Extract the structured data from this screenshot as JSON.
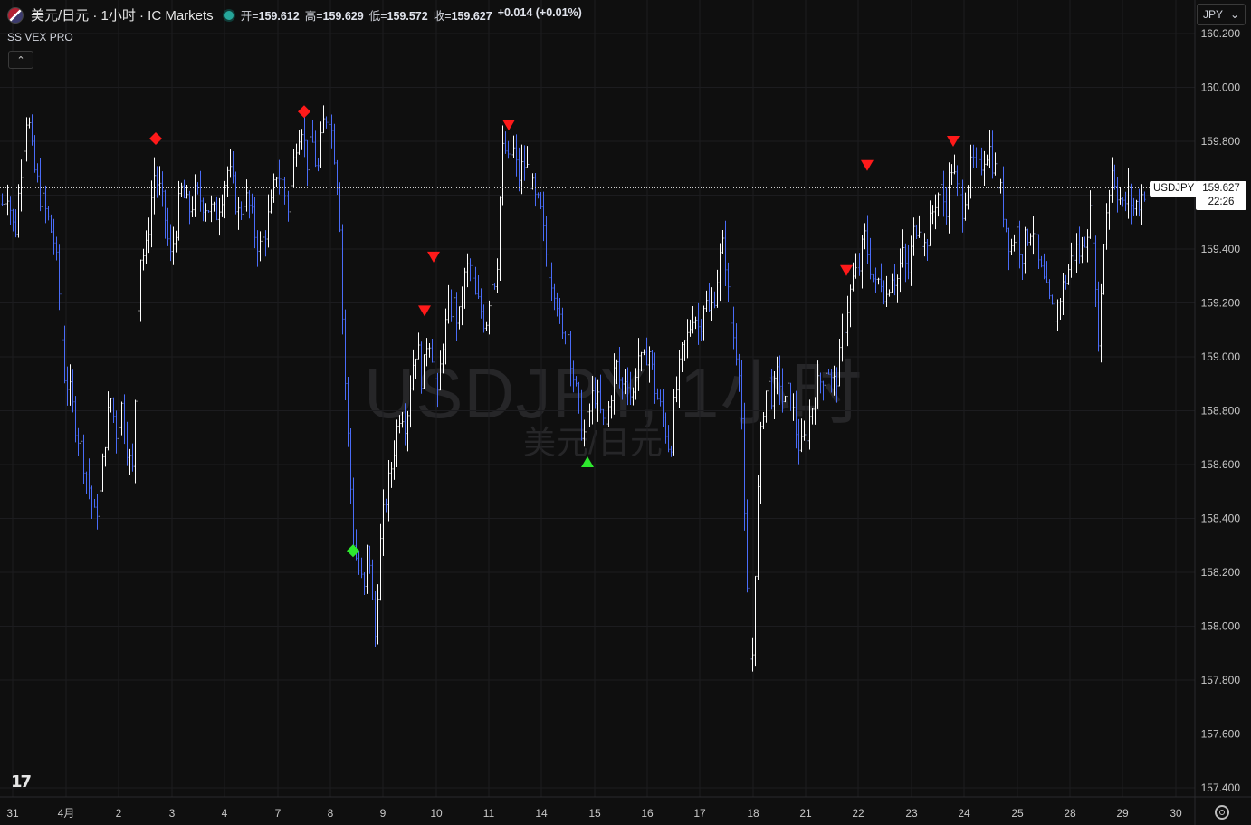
{
  "header": {
    "symbol_title": "美元/日元 · 1小时 · IC Markets",
    "open_label": "开=",
    "open": "159.612",
    "high_label": "高=",
    "high": "159.629",
    "low_label": "低=",
    "low": "159.572",
    "close_label": "收=",
    "close": "159.627",
    "change": "+0.014 (+0.01%)",
    "status_color": "#26a69a"
  },
  "indicator": {
    "name": "SS VEX PRO"
  },
  "currency_select": {
    "value": "JPY"
  },
  "watermark": {
    "line1": "USDJPY, 1小时",
    "line2": "美元/日元"
  },
  "last_price": {
    "symbol": "USDJPY",
    "price": "159.627",
    "countdown": "22:26"
  },
  "chart_data": {
    "type": "ohlc",
    "x_tick_labels": [
      "31",
      "4月",
      "2",
      "3",
      "4",
      "7",
      "8",
      "9",
      "10",
      "11",
      "14",
      "15",
      "16",
      "17",
      "18",
      "21",
      "22",
      "23",
      "24",
      "25",
      "28",
      "29",
      "30"
    ],
    "y_ticks": [
      "160.200",
      "160.000",
      "159.800",
      "159.600",
      "159.400",
      "159.200",
      "159.000",
      "158.800",
      "158.600",
      "158.400",
      "158.200",
      "158.000",
      "157.800",
      "157.600",
      "157.400"
    ],
    "ylim": [
      157.4,
      160.2
    ],
    "last_price": 159.627,
    "grid": true,
    "up_color": "#ffffff",
    "down_color": "#4a6cf7",
    "bar_count": 421,
    "anchors": [
      [
        0,
        159.55
      ],
      [
        8,
        159.62
      ],
      [
        16,
        159.44
      ],
      [
        22,
        159.68
      ],
      [
        30,
        159.92
      ],
      [
        36,
        159.72
      ],
      [
        44,
        159.6
      ],
      [
        52,
        159.52
      ],
      [
        60,
        159.42
      ],
      [
        66,
        159.2
      ],
      [
        70,
        158.95
      ],
      [
        76,
        158.88
      ],
      [
        84,
        158.74
      ],
      [
        92,
        158.62
      ],
      [
        98,
        158.52
      ],
      [
        104,
        158.4
      ],
      [
        110,
        158.48
      ],
      [
        116,
        158.7
      ],
      [
        122,
        158.85
      ],
      [
        128,
        158.72
      ],
      [
        134,
        158.82
      ],
      [
        140,
        158.68
      ],
      [
        146,
        158.55
      ],
      [
        150,
        158.92
      ],
      [
        152,
        159.2
      ],
      [
        156,
        159.42
      ],
      [
        160,
        159.35
      ],
      [
        166,
        159.55
      ],
      [
        170,
        159.68
      ],
      [
        176,
        159.62
      ],
      [
        182,
        159.52
      ],
      [
        188,
        159.36
      ],
      [
        194,
        159.48
      ],
      [
        200,
        159.62
      ],
      [
        208,
        159.54
      ],
      [
        216,
        159.6
      ],
      [
        224,
        159.58
      ],
      [
        232,
        159.55
      ],
      [
        238,
        159.52
      ],
      [
        246,
        159.62
      ],
      [
        252,
        159.7
      ],
      [
        258,
        159.62
      ],
      [
        264,
        159.52
      ],
      [
        270,
        159.6
      ],
      [
        276,
        159.55
      ],
      [
        282,
        159.45
      ],
      [
        288,
        159.4
      ],
      [
        294,
        159.48
      ],
      [
        300,
        159.56
      ],
      [
        306,
        159.7
      ],
      [
        312,
        159.64
      ],
      [
        318,
        159.55
      ],
      [
        326,
        159.8
      ],
      [
        332,
        159.88
      ],
      [
        338,
        159.72
      ],
      [
        344,
        159.8
      ],
      [
        350,
        159.68
      ],
      [
        356,
        159.86
      ],
      [
        362,
        159.92
      ],
      [
        368,
        159.78
      ],
      [
        374,
        159.58
      ],
      [
        378,
        159.1
      ],
      [
        382,
        158.8
      ],
      [
        386,
        158.55
      ],
      [
        390,
        158.3
      ],
      [
        396,
        158.2
      ],
      [
        402,
        158.12
      ],
      [
        406,
        158.35
      ],
      [
        410,
        158.1
      ],
      [
        414,
        157.95
      ],
      [
        418,
        158.25
      ],
      [
        424,
        158.45
      ],
      [
        430,
        158.55
      ],
      [
        436,
        158.7
      ],
      [
        442,
        158.82
      ],
      [
        448,
        158.75
      ],
      [
        454,
        158.95
      ],
      [
        460,
        159.05
      ],
      [
        466,
        158.9
      ],
      [
        472,
        159.1
      ],
      [
        478,
        159.0
      ],
      [
        482,
        158.8
      ],
      [
        488,
        159.05
      ],
      [
        494,
        159.15
      ],
      [
        500,
        159.2
      ],
      [
        506,
        159.12
      ],
      [
        512,
        159.28
      ],
      [
        518,
        159.35
      ],
      [
        524,
        159.22
      ],
      [
        530,
        159.18
      ],
      [
        536,
        159.12
      ],
      [
        542,
        159.28
      ],
      [
        548,
        159.3
      ],
      [
        552,
        159.6
      ],
      [
        556,
        159.82
      ],
      [
        560,
        159.7
      ],
      [
        566,
        159.78
      ],
      [
        572,
        159.66
      ],
      [
        578,
        159.72
      ],
      [
        584,
        159.68
      ],
      [
        590,
        159.58
      ],
      [
        596,
        159.55
      ],
      [
        602,
        159.4
      ],
      [
        608,
        159.3
      ],
      [
        614,
        159.25
      ],
      [
        620,
        159.05
      ],
      [
        626,
        159.12
      ],
      [
        632,
        158.95
      ],
      [
        638,
        158.82
      ],
      [
        644,
        158.7
      ],
      [
        650,
        158.78
      ],
      [
        656,
        158.88
      ],
      [
        662,
        158.8
      ],
      [
        668,
        158.72
      ],
      [
        674,
        158.85
      ],
      [
        680,
        158.98
      ],
      [
        686,
        158.88
      ],
      [
        692,
        158.95
      ],
      [
        698,
        158.82
      ],
      [
        704,
        159.02
      ],
      [
        710,
        158.95
      ],
      [
        716,
        159.05
      ],
      [
        722,
        158.9
      ],
      [
        728,
        158.82
      ],
      [
        734,
        158.75
      ],
      [
        740,
        158.65
      ],
      [
        744,
        158.8
      ],
      [
        748,
        158.9
      ],
      [
        754,
        159.02
      ],
      [
        760,
        159.08
      ],
      [
        766,
        159.18
      ],
      [
        772,
        159.1
      ],
      [
        778,
        159.22
      ],
      [
        784,
        159.15
      ],
      [
        790,
        159.25
      ],
      [
        796,
        159.38
      ],
      [
        800,
        159.42
      ],
      [
        806,
        159.15
      ],
      [
        812,
        159.05
      ],
      [
        818,
        158.95
      ],
      [
        822,
        158.4
      ],
      [
        826,
        158.05
      ],
      [
        830,
        157.75
      ],
      [
        834,
        158.2
      ],
      [
        838,
        158.55
      ],
      [
        842,
        158.8
      ],
      [
        848,
        158.9
      ],
      [
        854,
        158.85
      ],
      [
        860,
        158.95
      ],
      [
        866,
        158.8
      ],
      [
        872,
        158.88
      ],
      [
        878,
        158.75
      ],
      [
        884,
        158.65
      ],
      [
        890,
        158.7
      ],
      [
        896,
        158.8
      ],
      [
        902,
        158.88
      ],
      [
        908,
        158.92
      ],
      [
        914,
        158.98
      ],
      [
        920,
        158.88
      ],
      [
        926,
        158.95
      ],
      [
        930,
        159.05
      ],
      [
        936,
        159.18
      ],
      [
        942,
        159.28
      ],
      [
        948,
        159.32
      ],
      [
        954,
        159.45
      ],
      [
        960,
        159.35
      ],
      [
        966,
        159.25
      ],
      [
        972,
        159.3
      ],
      [
        978,
        159.22
      ],
      [
        984,
        159.32
      ],
      [
        990,
        159.28
      ],
      [
        996,
        159.38
      ],
      [
        1002,
        159.3
      ],
      [
        1008,
        159.45
      ],
      [
        1014,
        159.52
      ],
      [
        1020,
        159.4
      ],
      [
        1026,
        159.48
      ],
      [
        1032,
        159.58
      ],
      [
        1038,
        159.62
      ],
      [
        1044,
        159.55
      ],
      [
        1050,
        159.72
      ],
      [
        1056,
        159.62
      ],
      [
        1062,
        159.55
      ],
      [
        1068,
        159.65
      ],
      [
        1074,
        159.72
      ],
      [
        1080,
        159.68
      ],
      [
        1086,
        159.75
      ],
      [
        1092,
        159.78
      ],
      [
        1098,
        159.7
      ],
      [
        1104,
        159.62
      ],
      [
        1110,
        159.5
      ],
      [
        1116,
        159.4
      ],
      [
        1122,
        159.48
      ],
      [
        1128,
        159.38
      ],
      [
        1134,
        159.45
      ],
      [
        1140,
        159.5
      ],
      [
        1146,
        159.35
      ],
      [
        1152,
        159.28
      ],
      [
        1158,
        159.2
      ],
      [
        1164,
        159.15
      ],
      [
        1170,
        159.22
      ],
      [
        1176,
        159.28
      ],
      [
        1182,
        159.35
      ],
      [
        1188,
        159.4
      ],
      [
        1194,
        159.38
      ],
      [
        1200,
        159.48
      ],
      [
        1206,
        159.55
      ],
      [
        1210,
        159.2
      ],
      [
        1214,
        159.05
      ],
      [
        1218,
        159.4
      ],
      [
        1222,
        159.55
      ],
      [
        1228,
        159.7
      ],
      [
        1234,
        159.62
      ],
      [
        1240,
        159.55
      ],
      [
        1246,
        159.6
      ],
      [
        1252,
        159.55
      ],
      [
        1258,
        159.58
      ],
      [
        1264,
        159.62
      ]
    ],
    "signals": [
      {
        "shape": "diamond",
        "color": "#ff1a1a",
        "x": 172,
        "y": 159.81
      },
      {
        "shape": "diamond",
        "color": "#ff1a1a",
        "x": 336,
        "y": 159.91
      },
      {
        "shape": "diamond",
        "color": "#2ee82e",
        "x": 390,
        "y": 158.28
      },
      {
        "shape": "triangle-down",
        "color": "#ff1a1a",
        "x": 469,
        "y": 159.17
      },
      {
        "shape": "triangle-down",
        "color": "#ff1a1a",
        "x": 479,
        "y": 159.37
      },
      {
        "shape": "triangle-down",
        "color": "#ff1a1a",
        "x": 562,
        "y": 159.86
      },
      {
        "shape": "triangle-up",
        "color": "#2ee82e",
        "x": 649,
        "y": 158.61
      },
      {
        "shape": "triangle-down",
        "color": "#ff1a1a",
        "x": 935,
        "y": 159.32
      },
      {
        "shape": "triangle-down",
        "color": "#ff1a1a",
        "x": 958,
        "y": 159.71
      },
      {
        "shape": "triangle-down",
        "color": "#ff1a1a",
        "x": 1053,
        "y": 159.8
      }
    ]
  }
}
